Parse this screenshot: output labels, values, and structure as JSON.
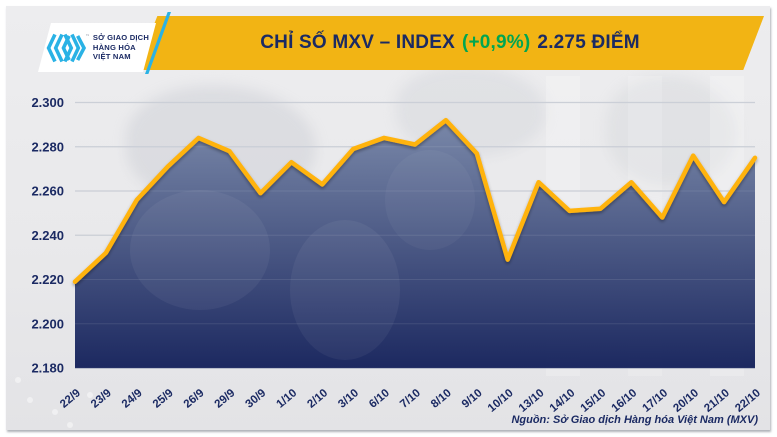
{
  "header": {
    "logo": {
      "line1": "SỞ GIAO DỊCH",
      "line2": "HÀNG HÓA",
      "line3": "VIỆT NAM"
    },
    "title_main": "CHỈ SỐ MXV – INDEX",
    "title_change": "(+0,9%)",
    "title_value": "2.275 ĐIỂM"
  },
  "footer": {
    "source": "Nguồn: Sở Giao dịch Hàng hóa Việt Nam (MXV)"
  },
  "colors": {
    "banner_gold": "#F2B414",
    "line_gold": "#FFB30D",
    "navy": "#1B2A63",
    "green": "#00A651",
    "logo_cyan": "#2AB2E5",
    "fill_top": "#7D8CAC",
    "fill_bottom": "#16235C",
    "gridline": "#C6CAD3"
  },
  "chart_data": {
    "type": "area",
    "title": "CHỈ SỐ MXV – INDEX (+0,9%) 2.275 ĐIỂM",
    "xlabel": "",
    "ylabel": "",
    "categories": [
      "22/9",
      "23/9",
      "24/9",
      "25/9",
      "26/9",
      "29/9",
      "30/9",
      "1/10",
      "2/10",
      "3/10",
      "6/10",
      "7/10",
      "8/10",
      "9/10",
      "10/10",
      "13/10",
      "14/10",
      "15/10",
      "16/10",
      "17/10",
      "20/10",
      "21/10",
      "22/10"
    ],
    "values": [
      2.219,
      2.232,
      2.256,
      2.271,
      2.284,
      2.278,
      2.259,
      2.273,
      2.263,
      2.279,
      2.284,
      2.281,
      2.292,
      2.277,
      2.229,
      2.264,
      2.251,
      2.252,
      2.264,
      2.248,
      2.276,
      2.255,
      2.275
    ],
    "ylim": [
      2.18,
      2.3
    ],
    "ytick_step": 0.02,
    "ytick_labels": [
      "2.180",
      "2.200",
      "2.220",
      "2.240",
      "2.260",
      "2.280",
      "2.300"
    ],
    "grid": true,
    "legend": "none",
    "last_value_label": "2.275"
  }
}
